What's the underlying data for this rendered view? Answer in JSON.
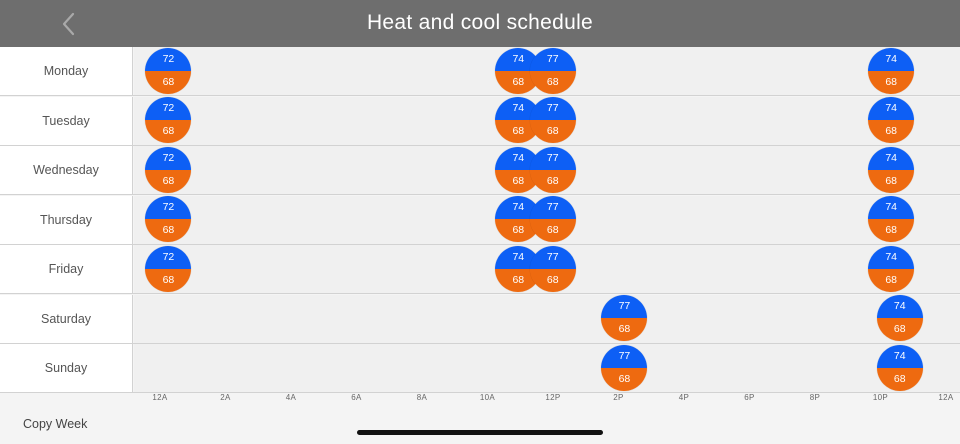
{
  "header": {
    "title": "Heat and cool schedule",
    "back_icon": "chevron-left-icon"
  },
  "colors": {
    "header_bg": "#6e6e6e",
    "cool": "#0d5ff5",
    "heat": "#ee6a10"
  },
  "time_axis": [
    "12A",
    "2A",
    "4A",
    "6A",
    "8A",
    "10A",
    "12P",
    "2P",
    "4P",
    "6P",
    "8P",
    "10P",
    "12A"
  ],
  "schedule": [
    {
      "day": "Monday",
      "setpoints": [
        {
          "time": "1:00 AM",
          "cool": "72",
          "heat": "68"
        },
        {
          "time": "11:10 AM",
          "cool": "74",
          "heat": "68"
        },
        {
          "time": "12:10 PM",
          "cool": "77",
          "heat": "68"
        },
        {
          "time": "10:00 PM",
          "cool": "74",
          "heat": "68"
        }
      ]
    },
    {
      "day": "Tuesday",
      "setpoints": [
        {
          "time": "1:00 AM",
          "cool": "72",
          "heat": "68"
        },
        {
          "time": "11:10 AM",
          "cool": "74",
          "heat": "68"
        },
        {
          "time": "12:10 PM",
          "cool": "77",
          "heat": "68"
        },
        {
          "time": "10:00 PM",
          "cool": "74",
          "heat": "68"
        }
      ]
    },
    {
      "day": "Wednesday",
      "setpoints": [
        {
          "time": "1:00 AM",
          "cool": "72",
          "heat": "68"
        },
        {
          "time": "11:10 AM",
          "cool": "74",
          "heat": "68"
        },
        {
          "time": "12:10 PM",
          "cool": "77",
          "heat": "68"
        },
        {
          "time": "10:00 PM",
          "cool": "74",
          "heat": "68"
        }
      ]
    },
    {
      "day": "Thursday",
      "setpoints": [
        {
          "time": "1:00 AM",
          "cool": "72",
          "heat": "68"
        },
        {
          "time": "11:10 AM",
          "cool": "74",
          "heat": "68"
        },
        {
          "time": "12:10 PM",
          "cool": "77",
          "heat": "68"
        },
        {
          "time": "10:00 PM",
          "cool": "74",
          "heat": "68"
        }
      ]
    },
    {
      "day": "Friday",
      "setpoints": [
        {
          "time": "1:00 AM",
          "cool": "72",
          "heat": "68"
        },
        {
          "time": "11:10 AM",
          "cool": "74",
          "heat": "68"
        },
        {
          "time": "12:10 PM",
          "cool": "77",
          "heat": "68"
        },
        {
          "time": "10:00 PM",
          "cool": "74",
          "heat": "68"
        }
      ]
    },
    {
      "day": "Saturday",
      "setpoints": [
        {
          "time": "2:15 PM",
          "cool": "77",
          "heat": "68"
        },
        {
          "time": "10:15 PM",
          "cool": "74",
          "heat": "68"
        }
      ]
    },
    {
      "day": "Sunday",
      "setpoints": [
        {
          "time": "2:15 PM",
          "cool": "77",
          "heat": "68"
        },
        {
          "time": "10:15 PM",
          "cool": "74",
          "heat": "68"
        }
      ]
    }
  ],
  "footer": {
    "copy_week": "Copy Week"
  }
}
